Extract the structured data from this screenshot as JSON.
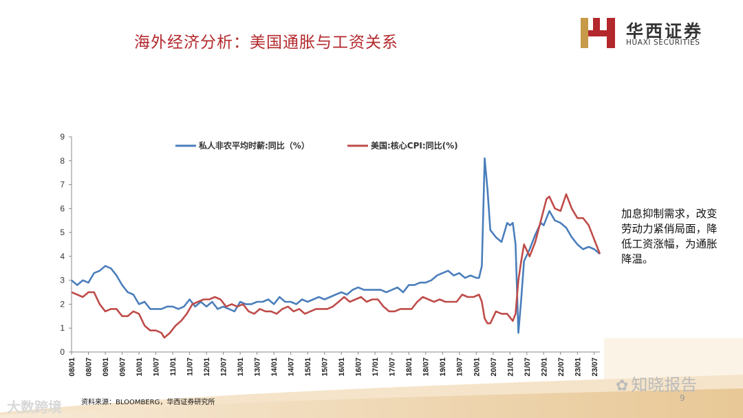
{
  "slide": {
    "title": "海外经济分析：美国通胀与工资关系",
    "logo_cn": "华西证券",
    "logo_en": "HUAXI SECURITIES",
    "note": "加息抑制需求，改变劳动力紧俏局面，降低工资涨幅，为通胀降温。",
    "source": "资料来源：BLOOMBERG，华西证券研究所",
    "page_number": "9",
    "watermark_right": "知晓报告",
    "watermark_left": "大数跨境"
  },
  "colors": {
    "title": "#b3282d",
    "series_wage": "#4a7ebb",
    "series_cpi": "#be4b48"
  },
  "chart_data": {
    "type": "line",
    "title": "",
    "xlabel": "",
    "ylabel": "",
    "ylim": [
      0,
      9
    ],
    "yticks": [
      "0",
      "1",
      "2",
      "3",
      "4",
      "5",
      "6",
      "7",
      "8",
      "9"
    ],
    "xticks": [
      "08/01",
      "08/07",
      "09/01",
      "09/07",
      "10/01",
      "10/07",
      "11/01",
      "11/07",
      "12/01",
      "12/07",
      "13/01",
      "13/07",
      "14/01",
      "14/07",
      "15/01",
      "15/07",
      "16/01",
      "16/07",
      "17/01",
      "17/07",
      "18/01",
      "18/07",
      "19/01",
      "19/07",
      "20/01",
      "20/07",
      "21/01",
      "21/07",
      "22/01",
      "22/07",
      "23/01",
      "23/07"
    ],
    "legend_position": "top",
    "grid": false,
    "x_start": "2008-01",
    "x_end": "2023-09",
    "series": [
      {
        "name": "私人非农平均时薪:同比（%）",
        "color": "#4a7ebb",
        "points": [
          [
            "2008-01",
            3.0
          ],
          [
            "2008-03",
            2.8
          ],
          [
            "2008-05",
            3.0
          ],
          [
            "2008-07",
            2.9
          ],
          [
            "2008-09",
            3.3
          ],
          [
            "2008-11",
            3.4
          ],
          [
            "2009-01",
            3.6
          ],
          [
            "2009-03",
            3.5
          ],
          [
            "2009-05",
            3.2
          ],
          [
            "2009-07",
            2.8
          ],
          [
            "2009-09",
            2.5
          ],
          [
            "2009-11",
            2.4
          ],
          [
            "2010-01",
            2.0
          ],
          [
            "2010-03",
            2.1
          ],
          [
            "2010-05",
            1.8
          ],
          [
            "2010-07",
            1.8
          ],
          [
            "2010-09",
            1.8
          ],
          [
            "2010-11",
            1.9
          ],
          [
            "2011-01",
            1.9
          ],
          [
            "2011-03",
            1.8
          ],
          [
            "2011-05",
            1.9
          ],
          [
            "2011-07",
            2.2
          ],
          [
            "2011-09",
            1.9
          ],
          [
            "2011-11",
            2.1
          ],
          [
            "2012-01",
            1.9
          ],
          [
            "2012-03",
            2.1
          ],
          [
            "2012-05",
            1.8
          ],
          [
            "2012-07",
            1.9
          ],
          [
            "2012-09",
            1.8
          ],
          [
            "2012-11",
            1.7
          ],
          [
            "2013-01",
            2.1
          ],
          [
            "2013-03",
            2.0
          ],
          [
            "2013-05",
            2.0
          ],
          [
            "2013-07",
            2.1
          ],
          [
            "2013-09",
            2.1
          ],
          [
            "2013-11",
            2.2
          ],
          [
            "2014-01",
            2.0
          ],
          [
            "2014-03",
            2.3
          ],
          [
            "2014-05",
            2.1
          ],
          [
            "2014-07",
            2.1
          ],
          [
            "2014-09",
            2.0
          ],
          [
            "2014-11",
            2.2
          ],
          [
            "2015-01",
            2.1
          ],
          [
            "2015-03",
            2.2
          ],
          [
            "2015-05",
            2.3
          ],
          [
            "2015-07",
            2.2
          ],
          [
            "2015-09",
            2.3
          ],
          [
            "2015-11",
            2.4
          ],
          [
            "2016-01",
            2.5
          ],
          [
            "2016-03",
            2.4
          ],
          [
            "2016-05",
            2.6
          ],
          [
            "2016-07",
            2.7
          ],
          [
            "2016-09",
            2.6
          ],
          [
            "2016-11",
            2.6
          ],
          [
            "2017-01",
            2.6
          ],
          [
            "2017-03",
            2.6
          ],
          [
            "2017-05",
            2.5
          ],
          [
            "2017-07",
            2.6
          ],
          [
            "2017-09",
            2.7
          ],
          [
            "2017-11",
            2.5
          ],
          [
            "2018-01",
            2.8
          ],
          [
            "2018-03",
            2.8
          ],
          [
            "2018-05",
            2.9
          ],
          [
            "2018-07",
            2.9
          ],
          [
            "2018-09",
            3.0
          ],
          [
            "2018-11",
            3.2
          ],
          [
            "2019-01",
            3.3
          ],
          [
            "2019-03",
            3.4
          ],
          [
            "2019-05",
            3.2
          ],
          [
            "2019-07",
            3.3
          ],
          [
            "2019-09",
            3.1
          ],
          [
            "2019-11",
            3.2
          ],
          [
            "2020-01",
            3.1
          ],
          [
            "2020-02",
            3.1
          ],
          [
            "2020-03",
            3.6
          ],
          [
            "2020-04",
            8.1
          ],
          [
            "2020-05",
            6.8
          ],
          [
            "2020-06",
            5.1
          ],
          [
            "2020-08",
            4.8
          ],
          [
            "2020-10",
            4.6
          ],
          [
            "2020-12",
            5.4
          ],
          [
            "2021-01",
            5.3
          ],
          [
            "2021-02",
            5.4
          ],
          [
            "2021-03",
            4.5
          ],
          [
            "2021-04",
            0.8
          ],
          [
            "2021-05",
            2.2
          ],
          [
            "2021-06",
            3.8
          ],
          [
            "2021-08",
            4.3
          ],
          [
            "2021-10",
            4.9
          ],
          [
            "2021-12",
            5.4
          ],
          [
            "2022-01",
            5.3
          ],
          [
            "2022-03",
            5.9
          ],
          [
            "2022-05",
            5.5
          ],
          [
            "2022-07",
            5.4
          ],
          [
            "2022-09",
            5.2
          ],
          [
            "2022-11",
            4.8
          ],
          [
            "2023-01",
            4.5
          ],
          [
            "2023-03",
            4.3
          ],
          [
            "2023-05",
            4.4
          ],
          [
            "2023-07",
            4.3
          ],
          [
            "2023-09",
            4.1
          ]
        ]
      },
      {
        "name": "美国:核心CPI:同比(%)",
        "color": "#be4b48",
        "points": [
          [
            "2008-01",
            2.5
          ],
          [
            "2008-03",
            2.4
          ],
          [
            "2008-05",
            2.3
          ],
          [
            "2008-07",
            2.5
          ],
          [
            "2008-09",
            2.5
          ],
          [
            "2008-11",
            2.0
          ],
          [
            "2009-01",
            1.7
          ],
          [
            "2009-03",
            1.8
          ],
          [
            "2009-05",
            1.8
          ],
          [
            "2009-07",
            1.5
          ],
          [
            "2009-09",
            1.5
          ],
          [
            "2009-11",
            1.7
          ],
          [
            "2010-01",
            1.6
          ],
          [
            "2010-03",
            1.1
          ],
          [
            "2010-05",
            0.9
          ],
          [
            "2010-07",
            0.9
          ],
          [
            "2010-09",
            0.8
          ],
          [
            "2010-10",
            0.6
          ],
          [
            "2010-12",
            0.8
          ],
          [
            "2011-02",
            1.1
          ],
          [
            "2011-04",
            1.3
          ],
          [
            "2011-06",
            1.6
          ],
          [
            "2011-08",
            2.0
          ],
          [
            "2011-10",
            2.1
          ],
          [
            "2011-12",
            2.2
          ],
          [
            "2012-02",
            2.2
          ],
          [
            "2012-04",
            2.3
          ],
          [
            "2012-06",
            2.2
          ],
          [
            "2012-08",
            1.9
          ],
          [
            "2012-10",
            2.0
          ],
          [
            "2012-12",
            1.9
          ],
          [
            "2013-02",
            2.0
          ],
          [
            "2013-04",
            1.7
          ],
          [
            "2013-06",
            1.6
          ],
          [
            "2013-08",
            1.8
          ],
          [
            "2013-10",
            1.7
          ],
          [
            "2013-12",
            1.7
          ],
          [
            "2014-02",
            1.6
          ],
          [
            "2014-04",
            1.8
          ],
          [
            "2014-06",
            1.9
          ],
          [
            "2014-08",
            1.7
          ],
          [
            "2014-10",
            1.8
          ],
          [
            "2014-12",
            1.6
          ],
          [
            "2015-02",
            1.7
          ],
          [
            "2015-04",
            1.8
          ],
          [
            "2015-06",
            1.8
          ],
          [
            "2015-08",
            1.8
          ],
          [
            "2015-10",
            1.9
          ],
          [
            "2015-12",
            2.1
          ],
          [
            "2016-02",
            2.3
          ],
          [
            "2016-04",
            2.1
          ],
          [
            "2016-06",
            2.2
          ],
          [
            "2016-08",
            2.3
          ],
          [
            "2016-10",
            2.1
          ],
          [
            "2016-12",
            2.2
          ],
          [
            "2017-02",
            2.2
          ],
          [
            "2017-04",
            1.9
          ],
          [
            "2017-06",
            1.7
          ],
          [
            "2017-08",
            1.7
          ],
          [
            "2017-10",
            1.8
          ],
          [
            "2017-12",
            1.8
          ],
          [
            "2018-02",
            1.8
          ],
          [
            "2018-04",
            2.1
          ],
          [
            "2018-06",
            2.3
          ],
          [
            "2018-08",
            2.2
          ],
          [
            "2018-10",
            2.1
          ],
          [
            "2018-12",
            2.2
          ],
          [
            "2019-02",
            2.1
          ],
          [
            "2019-04",
            2.1
          ],
          [
            "2019-06",
            2.1
          ],
          [
            "2019-08",
            2.4
          ],
          [
            "2019-10",
            2.3
          ],
          [
            "2019-12",
            2.3
          ],
          [
            "2020-02",
            2.4
          ],
          [
            "2020-03",
            2.1
          ],
          [
            "2020-04",
            1.4
          ],
          [
            "2020-05",
            1.2
          ],
          [
            "2020-06",
            1.2
          ],
          [
            "2020-08",
            1.7
          ],
          [
            "2020-10",
            1.6
          ],
          [
            "2020-12",
            1.6
          ],
          [
            "2021-02",
            1.3
          ],
          [
            "2021-03",
            1.6
          ],
          [
            "2021-04",
            3.0
          ],
          [
            "2021-05",
            3.8
          ],
          [
            "2021-06",
            4.5
          ],
          [
            "2021-08",
            4.0
          ],
          [
            "2021-10",
            4.6
          ],
          [
            "2021-12",
            5.5
          ],
          [
            "2022-02",
            6.4
          ],
          [
            "2022-03",
            6.5
          ],
          [
            "2022-05",
            6.0
          ],
          [
            "2022-07",
            5.9
          ],
          [
            "2022-09",
            6.6
          ],
          [
            "2022-11",
            6.0
          ],
          [
            "2023-01",
            5.6
          ],
          [
            "2023-03",
            5.6
          ],
          [
            "2023-05",
            5.3
          ],
          [
            "2023-07",
            4.7
          ],
          [
            "2023-09",
            4.1
          ]
        ]
      }
    ]
  }
}
